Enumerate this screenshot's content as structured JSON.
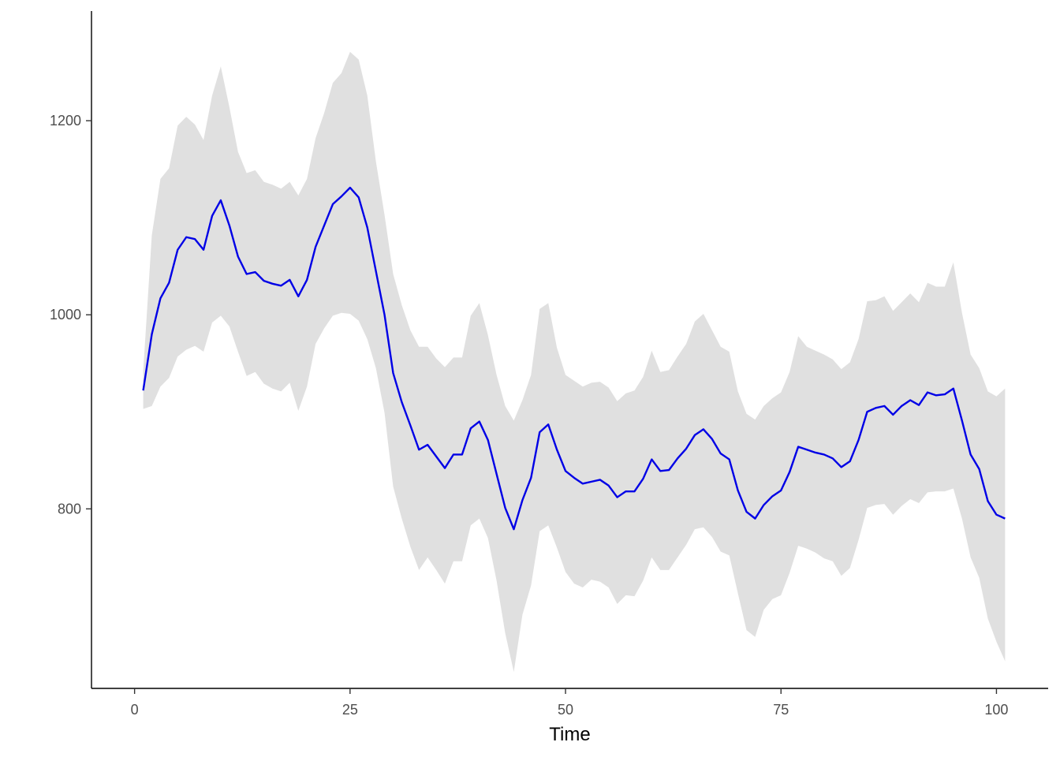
{
  "chart_data": {
    "type": "line",
    "title": "",
    "xlabel": "Time",
    "ylabel": "",
    "xlim": [
      -5,
      106
    ],
    "ylim": [
      615,
      1313
    ],
    "x_ticks": [
      0,
      25,
      50,
      75,
      100
    ],
    "x_tick_labels": [
      "0",
      "25",
      "50",
      "75",
      "100"
    ],
    "y_ticks": [
      800,
      1000,
      1200
    ],
    "y_tick_labels": [
      "800",
      "1000",
      "1200"
    ],
    "grid": false,
    "legend": "none",
    "colors": {
      "line": "#0000e6",
      "ribbon": "#e0e0e0",
      "axis": "#000000"
    },
    "x": [
      1,
      2,
      3,
      4,
      5,
      6,
      7,
      8,
      9,
      10,
      11,
      12,
      13,
      14,
      15,
      16,
      17,
      18,
      19,
      20,
      21,
      22,
      23,
      24,
      25,
      26,
      27,
      28,
      29,
      30,
      31,
      32,
      33,
      34,
      35,
      36,
      37,
      38,
      39,
      40,
      41,
      42,
      43,
      44,
      45,
      46,
      47,
      48,
      49,
      50,
      51,
      52,
      53,
      54,
      55,
      56,
      57,
      58,
      59,
      60,
      61,
      62,
      63,
      64,
      65,
      66,
      67,
      68,
      69,
      70,
      71,
      72,
      73,
      74,
      75,
      76,
      77,
      78,
      79,
      80,
      81,
      82,
      83,
      84,
      85,
      86,
      87,
      88,
      89,
      90,
      91,
      92,
      93,
      94,
      95,
      96,
      97,
      98,
      99,
      100,
      101
    ],
    "series": [
      {
        "values": [
          922,
          980,
          1017,
          1033,
          1067,
          1080,
          1078,
          1067,
          1102,
          1118,
          1092,
          1060,
          1042,
          1044,
          1035,
          1032,
          1030,
          1036,
          1019,
          1036,
          1070,
          1092,
          1114,
          1122,
          1131,
          1121,
          1090,
          1045,
          1000,
          940,
          910,
          886,
          861,
          866,
          854,
          842,
          856,
          856,
          883,
          890,
          871,
          836,
          801,
          779,
          809,
          832,
          879,
          887,
          861,
          839,
          832,
          826,
          828,
          830,
          824,
          812,
          818,
          818,
          831,
          851,
          839,
          840,
          852,
          862,
          876,
          882,
          872,
          857,
          851,
          819,
          797,
          790,
          804,
          813,
          819,
          838,
          864,
          861,
          858,
          856,
          852,
          843,
          849,
          871,
          900,
          904,
          906,
          897,
          906,
          912,
          907,
          920,
          917,
          918,
          924,
          891,
          856,
          841,
          808,
          794,
          790
        ],
        "lower": [
          903,
          906,
          926,
          935,
          957,
          964,
          968,
          962,
          992,
          999,
          988,
          962,
          937,
          941,
          929,
          924,
          921,
          930,
          901,
          926,
          970,
          986,
          999,
          1002,
          1001,
          994,
          975,
          945,
          899,
          823,
          790,
          761,
          737,
          750,
          737,
          723,
          746,
          746,
          783,
          790,
          770,
          726,
          672,
          632,
          691,
          721,
          777,
          783,
          760,
          735,
          723,
          719,
          727,
          725,
          719,
          702,
          711,
          710,
          726,
          750,
          737,
          737,
          750,
          763,
          779,
          781,
          771,
          756,
          752,
          713,
          675,
          668,
          696,
          707,
          711,
          734,
          762,
          759,
          755,
          749,
          746,
          731,
          739,
          768,
          801,
          804,
          805,
          794,
          803,
          810,
          806,
          817,
          818,
          818,
          821,
          790,
          750,
          729,
          687,
          663,
          643
        ],
        "upper": [
          942,
          1082,
          1140,
          1151,
          1195,
          1204,
          1196,
          1180,
          1226,
          1256,
          1214,
          1168,
          1146,
          1149,
          1137,
          1134,
          1130,
          1137,
          1123,
          1140,
          1182,
          1208,
          1239,
          1249,
          1271,
          1263,
          1226,
          1158,
          1103,
          1042,
          1010,
          984,
          967,
          967,
          955,
          946,
          956,
          956,
          999,
          1012,
          979,
          938,
          906,
          891,
          912,
          938,
          1006,
          1012,
          966,
          938,
          932,
          926,
          930,
          931,
          925,
          911,
          919,
          922,
          936,
          963,
          941,
          943,
          957,
          970,
          993,
          1001,
          984,
          967,
          962,
          921,
          898,
          892,
          906,
          914,
          920,
          941,
          978,
          967,
          963,
          959,
          954,
          944,
          951,
          975,
          1014,
          1015,
          1019,
          1004,
          1013,
          1022,
          1013,
          1033,
          1029,
          1029,
          1054,
          1002,
          959,
          945,
          921,
          916,
          924
        ]
      }
    ]
  }
}
